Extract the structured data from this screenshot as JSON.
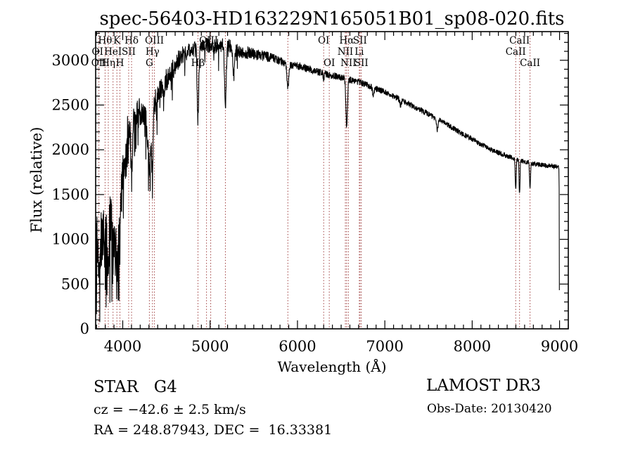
{
  "title": "spec-56403-HD163229N165051B01_sp08-020.fits",
  "annotations": {
    "class_label": "STAR   G4",
    "survey": "LAMOST DR3",
    "cz": "cz = −42.6 ± 2.5 km/s",
    "obs_date": "Obs-Date: 20130420",
    "coords": "RA = 248.87943, DEC =  16.33381"
  },
  "chart_data": {
    "type": "line",
    "title": "spec-56403-HD163229N165051B01_sp08-020.fits",
    "xlabel": "Wavelength (Å)",
    "ylabel": "Flux (relative)",
    "xlim": [
      3690,
      9100
    ],
    "ylim": [
      0,
      3320
    ],
    "xticks": [
      4000,
      5000,
      6000,
      7000,
      8000,
      9000
    ],
    "yticks": [
      0,
      500,
      1000,
      1500,
      2000,
      2500,
      3000
    ],
    "x_minor_step": 100,
    "y_minor_step": 100,
    "grid": false,
    "line_color": "#000000",
    "marker_line_color": "#a04040",
    "spectral_lines": [
      {
        "wavelength": 3712,
        "label": "OI",
        "row": 2,
        "marker": false
      },
      {
        "wavelength": 3727,
        "label": "OII",
        "row": 3,
        "marker": true
      },
      {
        "wavelength": 3798,
        "label": "Hθ",
        "row": 1,
        "marker": true
      },
      {
        "wavelength": 3835,
        "label": "Hη",
        "row": 3,
        "marker": true
      },
      {
        "wavelength": 3889,
        "label": "HeI",
        "row": 2,
        "marker": true
      },
      {
        "wavelength": 3933,
        "label": "K",
        "row": 1,
        "marker": true
      },
      {
        "wavelength": 3968,
        "label": "H",
        "row": 3,
        "marker": true
      },
      {
        "wavelength": 4068,
        "label": "SII",
        "row": 2,
        "marker": true
      },
      {
        "wavelength": 4101,
        "label": "Hδ",
        "row": 1,
        "marker": true
      },
      {
        "wavelength": 4305,
        "label": "G",
        "row": 3,
        "marker": true
      },
      {
        "wavelength": 4340,
        "label": "Hγ",
        "row": 2,
        "marker": true
      },
      {
        "wavelength": 4363,
        "label": "OIII",
        "row": 1,
        "marker": true
      },
      {
        "wavelength": 4861,
        "label": "Hβ",
        "row": 3,
        "marker": true
      },
      {
        "wavelength": 4959,
        "label": "",
        "row": 0,
        "marker": true
      },
      {
        "wavelength": 4983,
        "label": "OIII",
        "row": 1,
        "marker": false
      },
      {
        "wavelength": 5007,
        "label": "",
        "row": 0,
        "marker": true
      },
      {
        "wavelength": 5175,
        "label": "",
        "row": 0,
        "marker": true
      },
      {
        "wavelength": 5890,
        "label": "",
        "row": 0,
        "marker": true
      },
      {
        "wavelength": 6300,
        "label": "OI",
        "row": 1,
        "marker": true
      },
      {
        "wavelength": 6364,
        "label": "OI",
        "row": 3,
        "marker": true
      },
      {
        "wavelength": 6548,
        "label": "NII",
        "row": 2,
        "marker": true
      },
      {
        "wavelength": 6563,
        "label": "Hα",
        "row": 1,
        "marker": true
      },
      {
        "wavelength": 6583,
        "label": "NII",
        "row": 3,
        "marker": true
      },
      {
        "wavelength": 6708,
        "label": "Li",
        "row": 2,
        "marker": true
      },
      {
        "wavelength": 6716,
        "label": "SII",
        "row": 1,
        "marker": true
      },
      {
        "wavelength": 6731,
        "label": "SII",
        "row": 3,
        "marker": true
      },
      {
        "wavelength": 8498,
        "label": "CaII",
        "row": 2,
        "marker": true
      },
      {
        "wavelength": 8542,
        "label": "CaII",
        "row": 1,
        "marker": true
      },
      {
        "wavelength": 8662,
        "label": "CaII",
        "row": 3,
        "marker": true
      }
    ],
    "continuum": [
      [
        3690,
        60
      ],
      [
        3694,
        900
      ],
      [
        3700,
        950
      ],
      [
        3720,
        850
      ],
      [
        3740,
        950
      ],
      [
        3760,
        1000
      ],
      [
        3780,
        1080
      ],
      [
        3800,
        1150
      ],
      [
        3830,
        1180
      ],
      [
        3860,
        1150
      ],
      [
        3890,
        1120
      ],
      [
        3920,
        1100
      ],
      [
        3950,
        1250
      ],
      [
        3980,
        1500
      ],
      [
        4010,
        1800
      ],
      [
        4040,
        2150
      ],
      [
        4070,
        2280
      ],
      [
        4100,
        2300
      ],
      [
        4130,
        2350
      ],
      [
        4160,
        2400
      ],
      [
        4200,
        2420
      ],
      [
        4240,
        2410
      ],
      [
        4280,
        2380
      ],
      [
        4320,
        2440
      ],
      [
        4360,
        2520
      ],
      [
        4400,
        2600
      ],
      [
        4450,
        2700
      ],
      [
        4500,
        2780
      ],
      [
        4550,
        2850
      ],
      [
        4600,
        2950
      ],
      [
        4650,
        3020
      ],
      [
        4700,
        3070
      ],
      [
        4750,
        3100
      ],
      [
        4800,
        3120
      ],
      [
        4850,
        3130
      ],
      [
        4900,
        3150
      ],
      [
        4950,
        3160
      ],
      [
        5000,
        3170
      ],
      [
        5050,
        3150
      ],
      [
        5100,
        3160
      ],
      [
        5150,
        3170
      ],
      [
        5200,
        3170
      ],
      [
        5250,
        3140
      ],
      [
        5300,
        3110
      ],
      [
        5350,
        3100
      ],
      [
        5400,
        3090
      ],
      [
        5450,
        3080
      ],
      [
        5500,
        3070
      ],
      [
        5550,
        3060
      ],
      [
        5600,
        3050
      ],
      [
        5650,
        3040
      ],
      [
        5700,
        3030
      ],
      [
        5750,
        3010
      ],
      [
        5800,
        2990
      ],
      [
        5850,
        2970
      ],
      [
        5900,
        2950
      ],
      [
        5950,
        2945
      ],
      [
        6000,
        2940
      ],
      [
        6050,
        2925
      ],
      [
        6100,
        2910
      ],
      [
        6150,
        2895
      ],
      [
        6200,
        2880
      ],
      [
        6250,
        2865
      ],
      [
        6300,
        2850
      ],
      [
        6350,
        2840
      ],
      [
        6400,
        2830
      ],
      [
        6450,
        2820
      ],
      [
        6500,
        2810
      ],
      [
        6550,
        2800
      ],
      [
        6600,
        2780
      ],
      [
        6650,
        2770
      ],
      [
        6700,
        2760
      ],
      [
        6750,
        2740
      ],
      [
        6800,
        2720
      ],
      [
        6850,
        2700
      ],
      [
        6900,
        2680
      ],
      [
        6950,
        2665
      ],
      [
        7000,
        2650
      ],
      [
        7100,
        2600
      ],
      [
        7200,
        2550
      ],
      [
        7300,
        2500
      ],
      [
        7400,
        2450
      ],
      [
        7500,
        2400
      ],
      [
        7600,
        2340
      ],
      [
        7700,
        2290
      ],
      [
        7800,
        2230
      ],
      [
        7900,
        2170
      ],
      [
        8000,
        2120
      ],
      [
        8100,
        2060
      ],
      [
        8200,
        2010
      ],
      [
        8300,
        1970
      ],
      [
        8400,
        1930
      ],
      [
        8500,
        1900
      ],
      [
        8600,
        1870
      ],
      [
        8700,
        1845
      ],
      [
        8800,
        1830
      ],
      [
        8900,
        1820
      ],
      [
        8960,
        1810
      ],
      [
        8990,
        1800
      ],
      [
        8994,
        1780
      ],
      [
        8996,
        1400
      ],
      [
        8998,
        120
      ]
    ],
    "absorption_dips": [
      [
        3727,
        250,
        6
      ],
      [
        3798,
        300,
        7
      ],
      [
        3835,
        400,
        7
      ],
      [
        3889,
        350,
        7
      ],
      [
        3933,
        600,
        8
      ],
      [
        3968,
        500,
        8
      ],
      [
        4068,
        150,
        6
      ],
      [
        4101,
        550,
        9
      ],
      [
        4305,
        600,
        18
      ],
      [
        4340,
        650,
        9
      ],
      [
        4471,
        200,
        7
      ],
      [
        4861,
        780,
        9
      ],
      [
        5175,
        650,
        10
      ],
      [
        5270,
        300,
        8
      ],
      [
        5890,
        260,
        10
      ],
      [
        6300,
        60,
        5
      ],
      [
        6563,
        540,
        9
      ],
      [
        6867,
        80,
        8
      ],
      [
        7180,
        60,
        8
      ],
      [
        7600,
        120,
        9
      ],
      [
        8498,
        350,
        5
      ],
      [
        8542,
        390,
        5
      ],
      [
        8662,
        300,
        5
      ]
    ],
    "noise_profile": [
      [
        3690,
        330
      ],
      [
        3950,
        330
      ],
      [
        4050,
        180
      ],
      [
        4450,
        130
      ],
      [
        4700,
        95
      ],
      [
        5400,
        70
      ],
      [
        5800,
        45
      ],
      [
        6300,
        38
      ],
      [
        7000,
        32
      ],
      [
        8000,
        28
      ],
      [
        9000,
        26
      ]
    ],
    "noise_seed": 20130420
  }
}
